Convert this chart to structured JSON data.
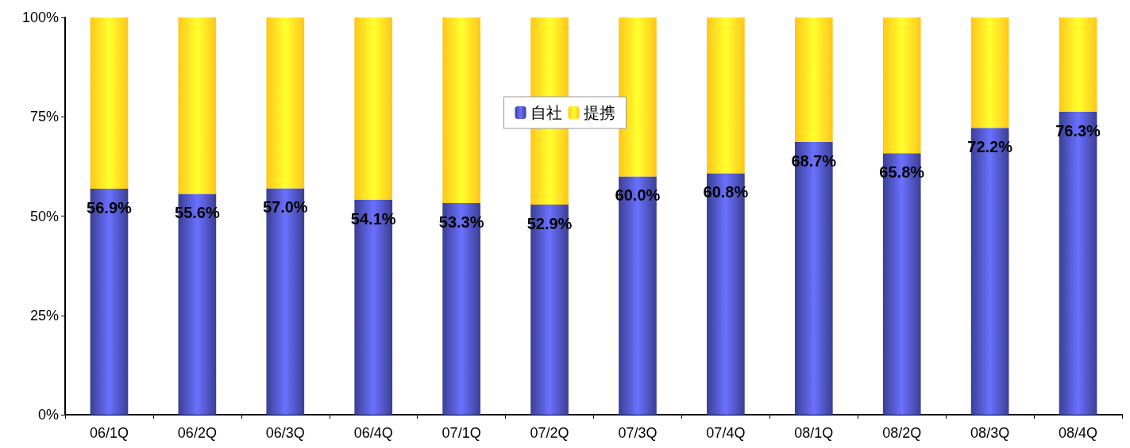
{
  "chart_data": {
    "type": "bar",
    "stacked": true,
    "categories": [
      "06/1Q",
      "06/2Q",
      "06/3Q",
      "06/4Q",
      "07/1Q",
      "07/2Q",
      "07/3Q",
      "07/4Q",
      "08/1Q",
      "08/2Q",
      "08/3Q",
      "08/4Q"
    ],
    "series": [
      {
        "name": "自社",
        "color": "#3b3f93",
        "values": [
          56.9,
          55.6,
          57.0,
          54.1,
          53.3,
          52.9,
          60.0,
          60.8,
          68.7,
          65.8,
          72.2,
          76.3
        ],
        "value_labels": [
          "56.9%",
          "55.6%",
          "57.0%",
          "54.1%",
          "53.3%",
          "52.9%",
          "60.0%",
          "60.8%",
          "68.7%",
          "65.8%",
          "72.2%",
          "76.3%"
        ]
      },
      {
        "name": "提携",
        "color": "#ffc61a",
        "values": [
          43.1,
          44.4,
          43.0,
          45.9,
          46.7,
          47.1,
          40.0,
          39.2,
          31.3,
          34.2,
          27.8,
          23.7
        ]
      }
    ],
    "ylim": [
      0,
      100
    ],
    "yticks": [
      {
        "value": 0,
        "label": "0%"
      },
      {
        "value": 25,
        "label": "25%"
      },
      {
        "value": 50,
        "label": "50%"
      },
      {
        "value": 75,
        "label": "75%"
      },
      {
        "value": 100,
        "label": "100%"
      }
    ],
    "grid": false,
    "legend": "top"
  }
}
